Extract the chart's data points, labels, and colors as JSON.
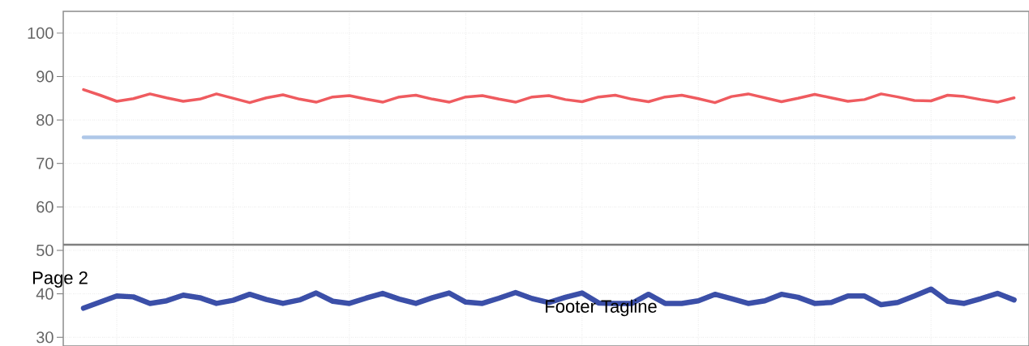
{
  "chart_data": {
    "type": "line",
    "categories": [
      null,
      null,
      null,
      null,
      null,
      null,
      null,
      null,
      null,
      null,
      null,
      null,
      null,
      null,
      null,
      null,
      null,
      null,
      null,
      null,
      null,
      null,
      null,
      null,
      null,
      null,
      null,
      null,
      null,
      null,
      null,
      null,
      null,
      null,
      null,
      null,
      null,
      null,
      null,
      null,
      null,
      null,
      null,
      null,
      null,
      null,
      null,
      null,
      null,
      null,
      null,
      null,
      null,
      null,
      null,
      null,
      null
    ],
    "ylim": [
      28,
      105
    ],
    "yticks": [
      30,
      40,
      50,
      60,
      70,
      80,
      90,
      100
    ],
    "grid": true,
    "marker": "none",
    "line_style": "solid",
    "series": [
      {
        "color": "#ef5b5f",
        "values": [
          87,
          85.7,
          84.3,
          84.9,
          86.0,
          85.1,
          84.3,
          84.8,
          86,
          85.0,
          84.0,
          85.1,
          85.8,
          84.8,
          84.1,
          85.3,
          85.6,
          84.8,
          84.1,
          85.3,
          85.7,
          84.8,
          84.1,
          85.3,
          85.6,
          84.8,
          84.1,
          85.3,
          85.6,
          84.7,
          84.2,
          85.3,
          85.7,
          84.8,
          84.2,
          85.3,
          85.7,
          84.9,
          84.0,
          85.4,
          86.0,
          85.1,
          84.2,
          85.0,
          85.9,
          85.1,
          84.3,
          84.7,
          86.0,
          85.3,
          84.5,
          84.4,
          85.7,
          85.4,
          84.7,
          84.1,
          85.1
        ]
      },
      {
        "color": "#aec7e8",
        "values": [
          76,
          76,
          76,
          76,
          76,
          76,
          76,
          76,
          76,
          76,
          76,
          76,
          76,
          76,
          76,
          76,
          76,
          76,
          76,
          76,
          76,
          76,
          76,
          76,
          76,
          76,
          76,
          76,
          76,
          76,
          76,
          76,
          76,
          76,
          76,
          76,
          76,
          76,
          76,
          76,
          76,
          76,
          76,
          76,
          76,
          76,
          76,
          76,
          76,
          76,
          76,
          76,
          76,
          76,
          76,
          76,
          76
        ]
      },
      {
        "color": "#3b4fa8",
        "values": [
          36.7,
          38.1,
          39.5,
          39.3,
          37.8,
          38.4,
          39.7,
          39.1,
          37.8,
          38.5,
          39.9,
          38.7,
          37.8,
          38.6,
          40.2,
          38.3,
          37.8,
          39.0,
          40.1,
          38.8,
          37.8,
          39.1,
          40.2,
          38.1,
          37.8,
          39.0,
          40.3,
          38.9,
          38.0,
          39.2,
          40.2,
          37.9,
          37.8,
          37.8,
          39.9,
          37.8,
          37.8,
          38.4,
          39.9,
          38.9,
          37.8,
          38.4,
          39.9,
          39.2,
          37.8,
          38.0,
          39.5,
          39.5,
          37.5,
          38.0,
          39.5,
          41.1,
          38.3,
          37.8,
          38.9,
          40.1,
          38.6
        ]
      }
    ],
    "ref_lines": [
      {
        "axis": "y",
        "value": 51.3,
        "color": "#808080"
      }
    ],
    "annotations": [
      "Page 2",
      "Footer Tagline"
    ]
  }
}
